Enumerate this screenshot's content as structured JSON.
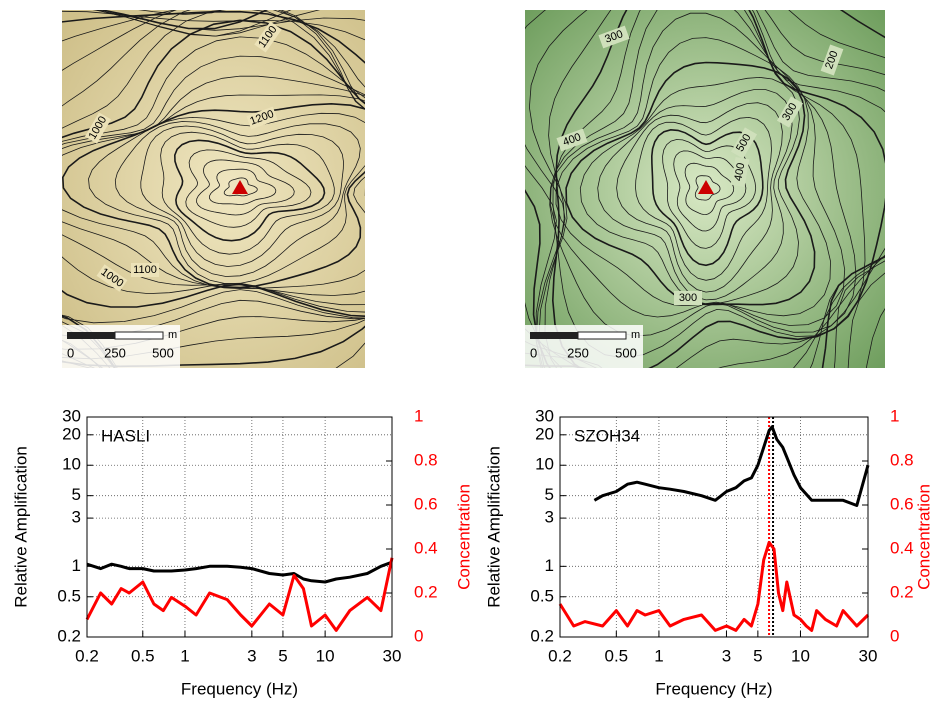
{
  "maps": [
    {
      "contour_labels": [
        "1100",
        "1200",
        "1000",
        "1100",
        "1000"
      ],
      "scale_labels": [
        "0",
        "250",
        "500"
      ],
      "scale_unit": "m"
    },
    {
      "contour_labels": [
        "300",
        "200",
        "300",
        "400",
        "500",
        "400",
        "300"
      ],
      "scale_labels": [
        "0",
        "250",
        "500"
      ],
      "scale_unit": "m"
    }
  ],
  "chart_data": [
    {
      "type": "line",
      "annotation": "HASLI",
      "x_label": "Frequency (Hz)",
      "y_label": "Relative Amplification",
      "y2_label": "Concentration",
      "xscale": "log",
      "yscale": "log",
      "grid": true,
      "xlim": [
        0.2,
        30
      ],
      "xticks": [
        0.2,
        0.5,
        1,
        3,
        5,
        10,
        30
      ],
      "ylim": [
        0.2,
        30
      ],
      "yticks": [
        0.2,
        0.5,
        1,
        3,
        5,
        10,
        20,
        30
      ],
      "y2lim": [
        0,
        1
      ],
      "y2ticks": [
        0,
        0.2,
        0.4,
        0.6,
        0.8,
        1
      ],
      "y2color": "#ff0000",
      "series": [
        {
          "color": "#000000",
          "x": [
            0.2,
            0.25,
            0.3,
            0.35,
            0.4,
            0.5,
            0.6,
            0.7,
            0.8,
            1,
            1.2,
            1.5,
            2,
            2.5,
            3,
            4,
            5,
            6,
            7,
            8,
            10,
            12,
            15,
            20,
            25,
            30
          ],
          "values": [
            1.05,
            0.95,
            1.05,
            1.0,
            0.95,
            0.95,
            0.9,
            0.9,
            0.9,
            0.92,
            0.95,
            1.0,
            1.0,
            0.98,
            0.95,
            0.85,
            0.82,
            0.85,
            0.75,
            0.72,
            0.7,
            0.75,
            0.78,
            0.85,
            1.0,
            1.1
          ]
        },
        {
          "color": "#ff0000",
          "axis": "y2",
          "x": [
            0.2,
            0.25,
            0.3,
            0.35,
            0.4,
            0.5,
            0.6,
            0.7,
            0.8,
            1,
            1.2,
            1.5,
            2,
            2.5,
            3,
            4,
            5,
            6,
            7,
            8,
            10,
            12,
            15,
            20,
            25,
            30
          ],
          "values": [
            0.08,
            0.2,
            0.15,
            0.22,
            0.2,
            0.25,
            0.15,
            0.12,
            0.18,
            0.14,
            0.1,
            0.2,
            0.17,
            0.1,
            0.05,
            0.15,
            0.1,
            0.28,
            0.22,
            0.05,
            0.1,
            0.03,
            0.12,
            0.18,
            0.12,
            0.36
          ]
        }
      ]
    },
    {
      "type": "line",
      "annotation": "SZOH34",
      "x_label": "Frequency (Hz)",
      "y_label": "Relative Amplification",
      "y2_label": "Concentration",
      "xscale": "log",
      "yscale": "log",
      "grid": true,
      "xlim": [
        0.2,
        30
      ],
      "xticks": [
        0.2,
        0.5,
        1,
        3,
        5,
        10,
        30
      ],
      "ylim": [
        0.2,
        30
      ],
      "yticks": [
        0.2,
        0.5,
        1,
        3,
        5,
        10,
        20,
        30
      ],
      "y2lim": [
        0,
        1
      ],
      "y2ticks": [
        0,
        0.2,
        0.4,
        0.6,
        0.8,
        1
      ],
      "y2color": "#ff0000",
      "vlines": [
        {
          "value": 6,
          "color": "#ff0000"
        },
        {
          "value": 6.4,
          "color": "#000000"
        }
      ],
      "series": [
        {
          "color": "#000000",
          "x": [
            0.35,
            0.4,
            0.5,
            0.6,
            0.7,
            0.8,
            1,
            1.2,
            1.5,
            2,
            2.5,
            3,
            3.5,
            4,
            4.5,
            5,
            5.5,
            6,
            6.3,
            6.8,
            7.5,
            8,
            9,
            10,
            12,
            15,
            20,
            25,
            30
          ],
          "values": [
            4.5,
            5,
            5.5,
            6.5,
            6.8,
            6.5,
            6,
            5.8,
            5.5,
            5,
            4.5,
            5.5,
            6,
            7,
            7.5,
            10,
            15,
            22,
            24,
            18,
            15,
            12,
            8,
            6,
            4.5,
            4.5,
            4.5,
            4,
            10
          ]
        },
        {
          "color": "#ff0000",
          "axis": "y2",
          "x": [
            0.2,
            0.25,
            0.3,
            0.4,
            0.5,
            0.6,
            0.7,
            0.8,
            1,
            1.2,
            1.5,
            2,
            2.5,
            3,
            3.5,
            4,
            4.5,
            5,
            5.5,
            6,
            6.5,
            7,
            7.5,
            8,
            9,
            10,
            11,
            12,
            13,
            15,
            18,
            20,
            25,
            30
          ],
          "values": [
            0.15,
            0.05,
            0.07,
            0.05,
            0.12,
            0.05,
            0.12,
            0.1,
            0.12,
            0.05,
            0.08,
            0.1,
            0.03,
            0.05,
            0.03,
            0.08,
            0.05,
            0.15,
            0.35,
            0.43,
            0.4,
            0.2,
            0.12,
            0.25,
            0.1,
            0.08,
            0.05,
            0.03,
            0.12,
            0.08,
            0.05,
            0.12,
            0.05,
            0.1
          ]
        }
      ]
    }
  ]
}
